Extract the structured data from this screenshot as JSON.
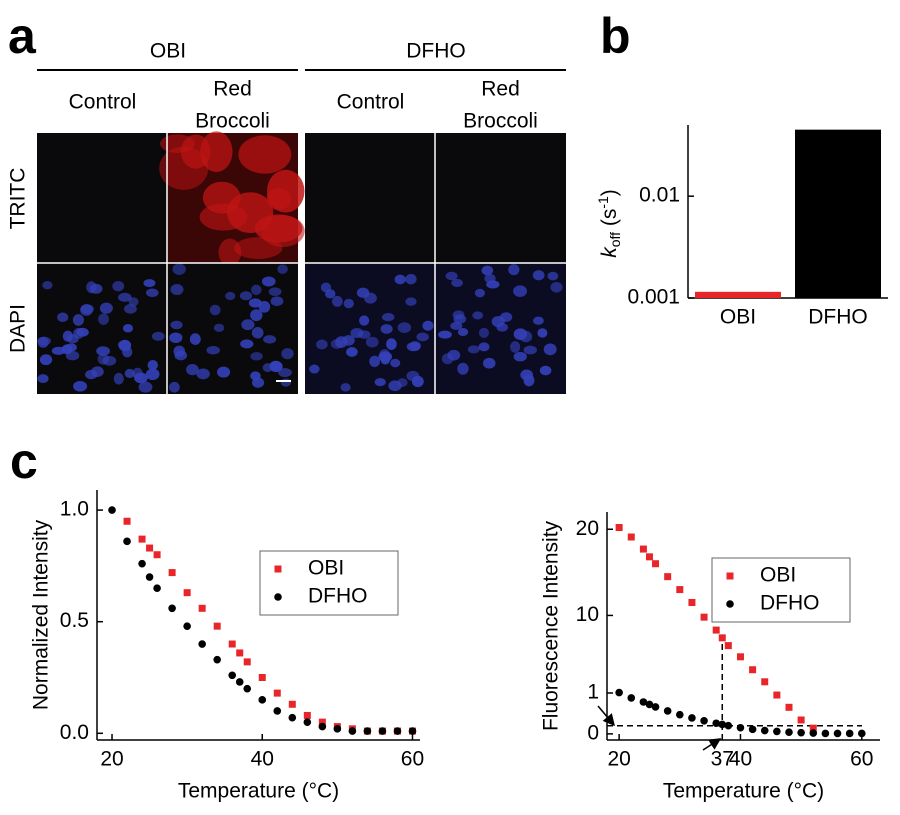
{
  "panel_labels": [
    "a",
    "b",
    "c"
  ],
  "images": {
    "groups": [
      {
        "name": "OBI",
        "columns": [
          [
            "Control"
          ],
          [
            "Red",
            "Broccoli"
          ]
        ]
      },
      {
        "name": "DFHO",
        "columns": [
          [
            "Control"
          ],
          [
            "Red",
            "Broccoli"
          ]
        ]
      }
    ],
    "rows": [
      "TRITC",
      "DAPI"
    ]
  },
  "chart_data": [
    {
      "type": "bar",
      "categories": [
        "OBI",
        "DFHO"
      ],
      "values": [
        0.00115,
        0.045
      ],
      "colors": [
        "#e8262a",
        "#000000"
      ],
      "ylabel_parts": [
        "k",
        "off",
        " (s",
        "-1",
        ")"
      ],
      "ylog": true,
      "ylim": [
        0.001,
        0.05
      ],
      "yticks": [
        0.001,
        0.01
      ]
    },
    {
      "type": "scatter",
      "xlabel": "Temperature (°C)",
      "ylabel": "Normalized Intensity",
      "xlim": [
        18,
        61
      ],
      "ylim": [
        -0.03,
        1.09
      ],
      "xticks": [
        20,
        40,
        60
      ],
      "yticks": [
        {
          "value": 0,
          "label": "0.0"
        },
        {
          "value": 0.5,
          "label": "0.5"
        },
        {
          "value": 1,
          "label": "1.0"
        }
      ],
      "legend": "center right",
      "series": [
        {
          "name": "OBI",
          "color": "#e8262a",
          "marker": "square",
          "x": [
            22,
            24,
            25,
            26,
            28,
            30,
            32,
            34,
            36,
            37,
            38,
            40,
            42,
            44,
            46,
            48,
            50,
            52,
            54,
            56,
            58,
            60
          ],
          "values": [
            0.95,
            0.87,
            0.83,
            0.8,
            0.72,
            0.63,
            0.56,
            0.48,
            0.4,
            0.36,
            0.32,
            0.25,
            0.18,
            0.13,
            0.08,
            0.05,
            0.03,
            0.02,
            0.01,
            0.01,
            0.01,
            0.01
          ]
        },
        {
          "name": "DFHO",
          "color": "#000000",
          "marker": "circle",
          "x": [
            20,
            22,
            24,
            25,
            26,
            28,
            30,
            32,
            34,
            36,
            37,
            38,
            40,
            42,
            44,
            46,
            48,
            50,
            52,
            54,
            56,
            58,
            60
          ],
          "values": [
            1.0,
            0.86,
            0.76,
            0.7,
            0.65,
            0.56,
            0.48,
            0.4,
            0.33,
            0.26,
            0.23,
            0.2,
            0.15,
            0.1,
            0.07,
            0.05,
            0.03,
            0.02,
            0.01,
            0.01,
            0.01,
            0.01,
            0.01
          ]
        }
      ]
    },
    {
      "type": "scatter",
      "xlabel": "Temperature (°C)",
      "ylabel": "Fluorescence Intensity",
      "xlim": [
        18,
        63
      ],
      "ylim": [
        -0.15,
        22
      ],
      "ybreak": 1,
      "xticks": [
        20,
        37,
        40,
        60
      ],
      "yticks": [
        0,
        1,
        10,
        20
      ],
      "legend": "upper right",
      "guides": {
        "x": 37,
        "y": 0.2
      },
      "series": [
        {
          "name": "OBI",
          "color": "#e8262a",
          "marker": "square",
          "x": [
            20,
            22,
            24,
            25,
            26,
            28,
            30,
            32,
            34,
            36,
            37,
            38,
            40,
            42,
            44,
            46,
            48,
            50,
            52
          ],
          "values": [
            20.2,
            19.1,
            17.7,
            16.8,
            16.0,
            14.5,
            13.0,
            11.5,
            9.8,
            8.3,
            7.4,
            6.5,
            5.2,
            3.7,
            2.3,
            0.95,
            0.65,
            0.34,
            0.14
          ]
        },
        {
          "name": "DFHO",
          "color": "#000000",
          "marker": "circle",
          "x": [
            20,
            22,
            24,
            25,
            26,
            28,
            30,
            32,
            34,
            36,
            37,
            38,
            40,
            42,
            44,
            46,
            48,
            50,
            52,
            54,
            56,
            58,
            60
          ],
          "values": [
            1.05,
            0.88,
            0.78,
            0.72,
            0.66,
            0.56,
            0.47,
            0.39,
            0.32,
            0.26,
            0.23,
            0.2,
            0.15,
            0.11,
            0.08,
            0.06,
            0.04,
            0.03,
            0.02,
            0.01,
            0.01,
            0.01,
            0.01
          ]
        }
      ]
    }
  ]
}
